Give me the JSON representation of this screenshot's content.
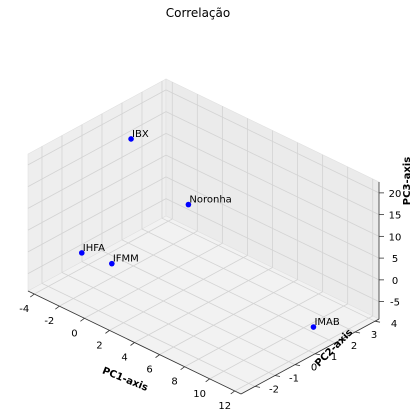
{
  "chart_data": {
    "type": "scatter",
    "projection": "3d",
    "title": "Correlação",
    "xlabel": "PC1-axis",
    "ylabel": "PC2-axis",
    "zlabel": "PC3-axis",
    "xlim": [
      -4.5,
      12.5
    ],
    "ylim": [
      -2.7,
      4.2
    ],
    "zlim": [
      -9,
      22.5
    ],
    "xticks": [
      -4,
      -2,
      0,
      2,
      4,
      6,
      8,
      10,
      12
    ],
    "yticks": [
      -2,
      -1,
      0,
      1,
      2,
      3,
      4
    ],
    "zticks": [
      -5,
      0,
      5,
      10,
      15,
      20
    ],
    "grid": true,
    "marker_color": "#0000ff",
    "points": [
      {
        "label": "IBX",
        "x": -2.5,
        "y": 1.2,
        "z": 19.0
      },
      {
        "label": "Noronha",
        "x": 0.8,
        "y": 2.0,
        "z": 6.5
      },
      {
        "label": "IHFA",
        "x": -3.4,
        "y": -0.7,
        "z": -3.7
      },
      {
        "label": "IFMM",
        "x": -1.8,
        "y": -0.2,
        "z": -5.2
      },
      {
        "label": "IMAB",
        "x": 11.1,
        "y": 1.8,
        "z": -6.8
      }
    ]
  }
}
